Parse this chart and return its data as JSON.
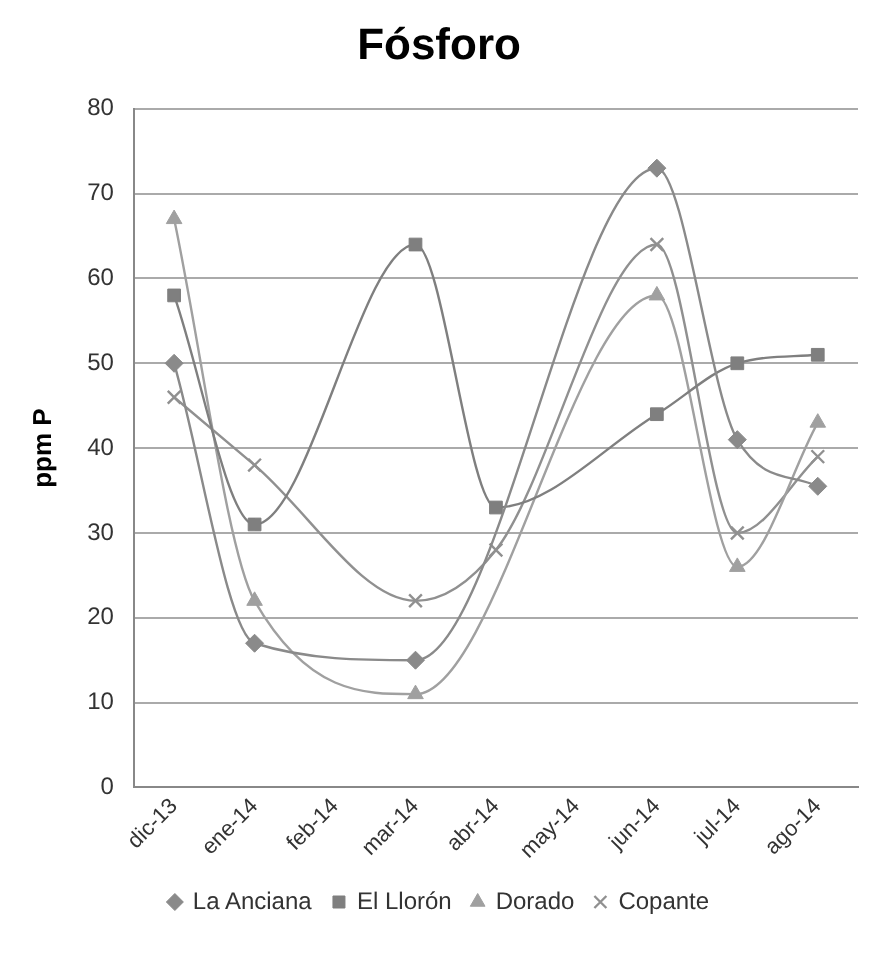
{
  "chart_data": {
    "type": "line",
    "title": "Fósforo",
    "ylabel": "ppm P",
    "categories": [
      "dic-13",
      "ene-14",
      "feb-14",
      "mar-14",
      "abr-14",
      "may-14",
      "jun-14",
      "jul-14",
      "ago-14"
    ],
    "series": [
      {
        "name": "La Anciana",
        "color": "#8a8a8a",
        "marker": "diamond",
        "values": [
          50,
          17,
          null,
          15,
          null,
          null,
          73,
          41,
          35.5
        ]
      },
      {
        "name": "El Llorón",
        "color": "#7f7f7f",
        "marker": "square",
        "values": [
          58,
          31,
          null,
          64,
          33,
          null,
          44,
          50,
          51
        ]
      },
      {
        "name": "Dorado",
        "color": "#a0a0a0",
        "marker": "triangle",
        "values": [
          67,
          22,
          null,
          11,
          null,
          null,
          58,
          26,
          43
        ]
      },
      {
        "name": "Copante",
        "color": "#909090",
        "marker": "cross",
        "values": [
          46,
          38,
          null,
          22,
          28,
          null,
          64,
          30,
          39
        ]
      }
    ],
    "ylim": [
      0,
      80
    ],
    "yticks": [
      0,
      10,
      20,
      30,
      40,
      50,
      60,
      70,
      80
    ],
    "grid": "y",
    "legend": "bottom"
  }
}
